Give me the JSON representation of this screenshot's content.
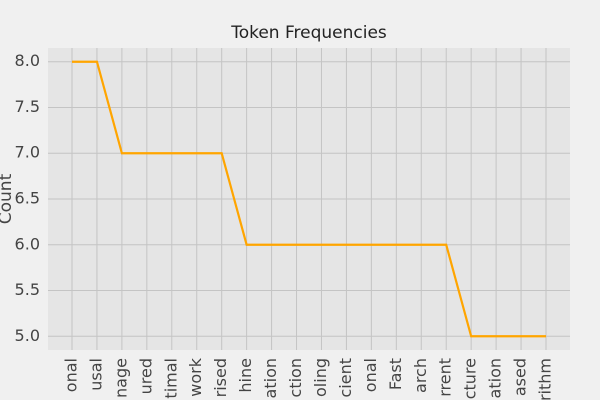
{
  "chart_data": {
    "type": "line",
    "title": "Token Frequencies",
    "ylabel": "Count",
    "categories": [
      "onal",
      "usal",
      "nage",
      "ured",
      "timal",
      "work",
      "rised",
      "hine",
      "ation",
      "ction",
      "oling",
      "cient",
      "onal",
      "Fast",
      "arch",
      "rrent",
      "cture",
      "ation",
      "ased",
      "rithm"
    ],
    "values": [
      8,
      8,
      7,
      7,
      7,
      7,
      7,
      6,
      6,
      6,
      6,
      6,
      6,
      6,
      6,
      6,
      5,
      5,
      5,
      5
    ],
    "color": "#ffa500",
    "ylim": [
      4.85,
      8.15
    ],
    "yticks": [
      {
        "value": 5.0,
        "label": "5.0"
      },
      {
        "value": 5.5,
        "label": "5.5"
      },
      {
        "value": 6.0,
        "label": "6.0"
      },
      {
        "value": 6.5,
        "label": "6.5"
      },
      {
        "value": 7.0,
        "label": "7.0"
      },
      {
        "value": 7.5,
        "label": "7.5"
      },
      {
        "value": 8.0,
        "label": "8.0"
      }
    ],
    "grid": true
  }
}
